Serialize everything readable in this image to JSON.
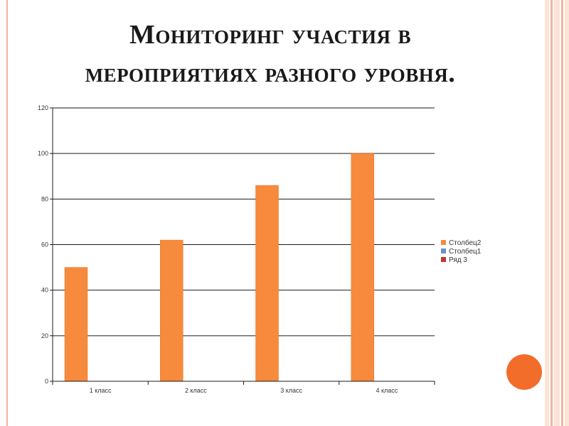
{
  "slide": {
    "title_line1": "Мониторинг участия в",
    "title_line2": "мероприятиях разного уровня."
  },
  "colors": {
    "accent": "#f26d2a",
    "border": "#f4b49a",
    "series": [
      "#f78a3c",
      "#6e8fc9",
      "#c0392b"
    ]
  },
  "chart_data": {
    "type": "bar",
    "categories": [
      "1 класс",
      "2 класс",
      "3 класс",
      "4 класс"
    ],
    "series": [
      {
        "name": "Столбец2",
        "values": [
          50,
          62,
          86,
          100
        ]
      },
      {
        "name": "Столбец1",
        "values": [
          0,
          0,
          0,
          0
        ]
      },
      {
        "name": "Ряд 3",
        "values": [
          0,
          0,
          0,
          0
        ]
      }
    ],
    "y_ticks": [
      "0",
      "20",
      "40",
      "60",
      "80",
      "100",
      "120"
    ],
    "ylim": [
      0,
      120
    ],
    "grid": true,
    "legend_position": "right"
  }
}
